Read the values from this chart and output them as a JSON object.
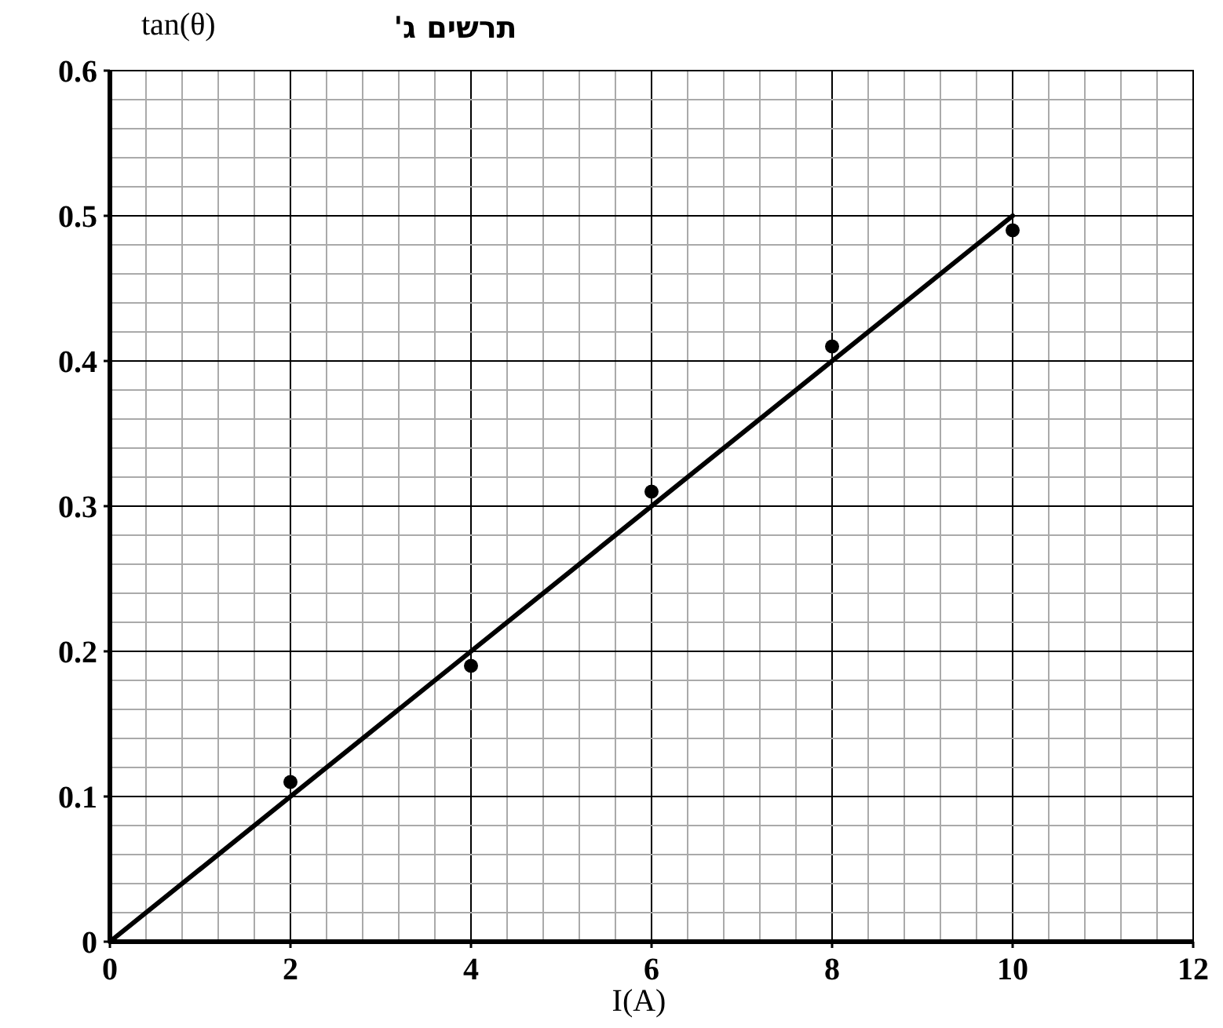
{
  "chart_data": {
    "type": "line",
    "title": "תרשים ג'",
    "xlabel": "I(A)",
    "ylabel": "tan(θ)",
    "series": [
      {
        "type": "scatter",
        "marker": "circle",
        "color": "#000000",
        "x": [
          2,
          4,
          6,
          8,
          10
        ],
        "values": [
          0.11,
          0.19,
          0.31,
          0.41,
          0.49
        ]
      },
      {
        "color": "#000000",
        "x": [
          0,
          10
        ],
        "values": [
          0,
          0.5
        ]
      }
    ],
    "xlim": [
      0,
      12
    ],
    "xticks": [
      0,
      2,
      4,
      6,
      8,
      10,
      12
    ],
    "ylim": [
      0,
      0.6
    ],
    "yticks": [
      0,
      0.1,
      0.2,
      0.3,
      0.4,
      0.5,
      0.6
    ],
    "grid": true
  }
}
